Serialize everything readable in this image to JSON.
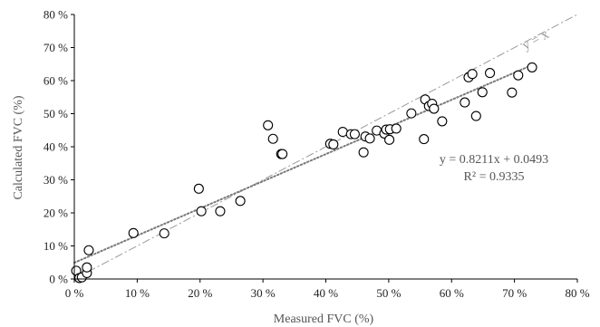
{
  "chart_data": {
    "type": "scatter",
    "xlabel": "Measured FVC (%)",
    "ylabel": "Calculated FVC (%)",
    "xlim": [
      0,
      80
    ],
    "ylim": [
      0,
      80
    ],
    "x_ticks": [
      "0 %",
      "10 %",
      "20 %",
      "30 %",
      "40 %",
      "50 %",
      "60 %",
      "70 %",
      "80 %"
    ],
    "y_ticks": [
      "0 %",
      "10 %",
      "20 %",
      "30 %",
      "40 %",
      "50 %",
      "60 %",
      "70 %",
      "80 %"
    ],
    "grid": false,
    "identity_line_label": "y = x",
    "regression": {
      "equation": "y = 0.8211x + 0.0493",
      "r_squared": "R² = 0.9335",
      "slope": 0.8211,
      "intercept": 4.93
    },
    "points": [
      {
        "x": 0.3,
        "y": 2.5
      },
      {
        "x": 0.8,
        "y": 0.3
      },
      {
        "x": 1.2,
        "y": 0.5
      },
      {
        "x": 2.0,
        "y": 1.8
      },
      {
        "x": 2.0,
        "y": 3.5
      },
      {
        "x": 2.3,
        "y": 8.7
      },
      {
        "x": 9.4,
        "y": 13.9
      },
      {
        "x": 14.3,
        "y": 13.8
      },
      {
        "x": 19.8,
        "y": 27.3
      },
      {
        "x": 20.2,
        "y": 20.5
      },
      {
        "x": 23.2,
        "y": 20.5
      },
      {
        "x": 26.4,
        "y": 23.6
      },
      {
        "x": 30.8,
        "y": 46.5
      },
      {
        "x": 31.6,
        "y": 42.4
      },
      {
        "x": 32.9,
        "y": 37.8
      },
      {
        "x": 33.1,
        "y": 37.8
      },
      {
        "x": 40.7,
        "y": 40.9
      },
      {
        "x": 41.2,
        "y": 40.7
      },
      {
        "x": 42.7,
        "y": 44.5
      },
      {
        "x": 44.0,
        "y": 43.8
      },
      {
        "x": 44.6,
        "y": 43.8
      },
      {
        "x": 46.0,
        "y": 38.3
      },
      {
        "x": 46.3,
        "y": 43.1
      },
      {
        "x": 47.0,
        "y": 42.5
      },
      {
        "x": 48.1,
        "y": 44.9
      },
      {
        "x": 49.3,
        "y": 44.0
      },
      {
        "x": 49.6,
        "y": 45.2
      },
      {
        "x": 50.1,
        "y": 42.1
      },
      {
        "x": 50.2,
        "y": 45.3
      },
      {
        "x": 51.2,
        "y": 45.5
      },
      {
        "x": 53.6,
        "y": 50.1
      },
      {
        "x": 55.6,
        "y": 42.3
      },
      {
        "x": 55.8,
        "y": 54.3
      },
      {
        "x": 56.4,
        "y": 52.3
      },
      {
        "x": 56.9,
        "y": 53.0
      },
      {
        "x": 57.2,
        "y": 51.5
      },
      {
        "x": 58.5,
        "y": 47.7
      },
      {
        "x": 62.1,
        "y": 53.4
      },
      {
        "x": 62.7,
        "y": 61.0
      },
      {
        "x": 63.3,
        "y": 62.0
      },
      {
        "x": 63.9,
        "y": 49.3
      },
      {
        "x": 64.9,
        "y": 56.5
      },
      {
        "x": 66.1,
        "y": 62.3
      },
      {
        "x": 69.6,
        "y": 56.4
      },
      {
        "x": 70.6,
        "y": 61.6
      },
      {
        "x": 72.8,
        "y": 64.0
      }
    ]
  }
}
